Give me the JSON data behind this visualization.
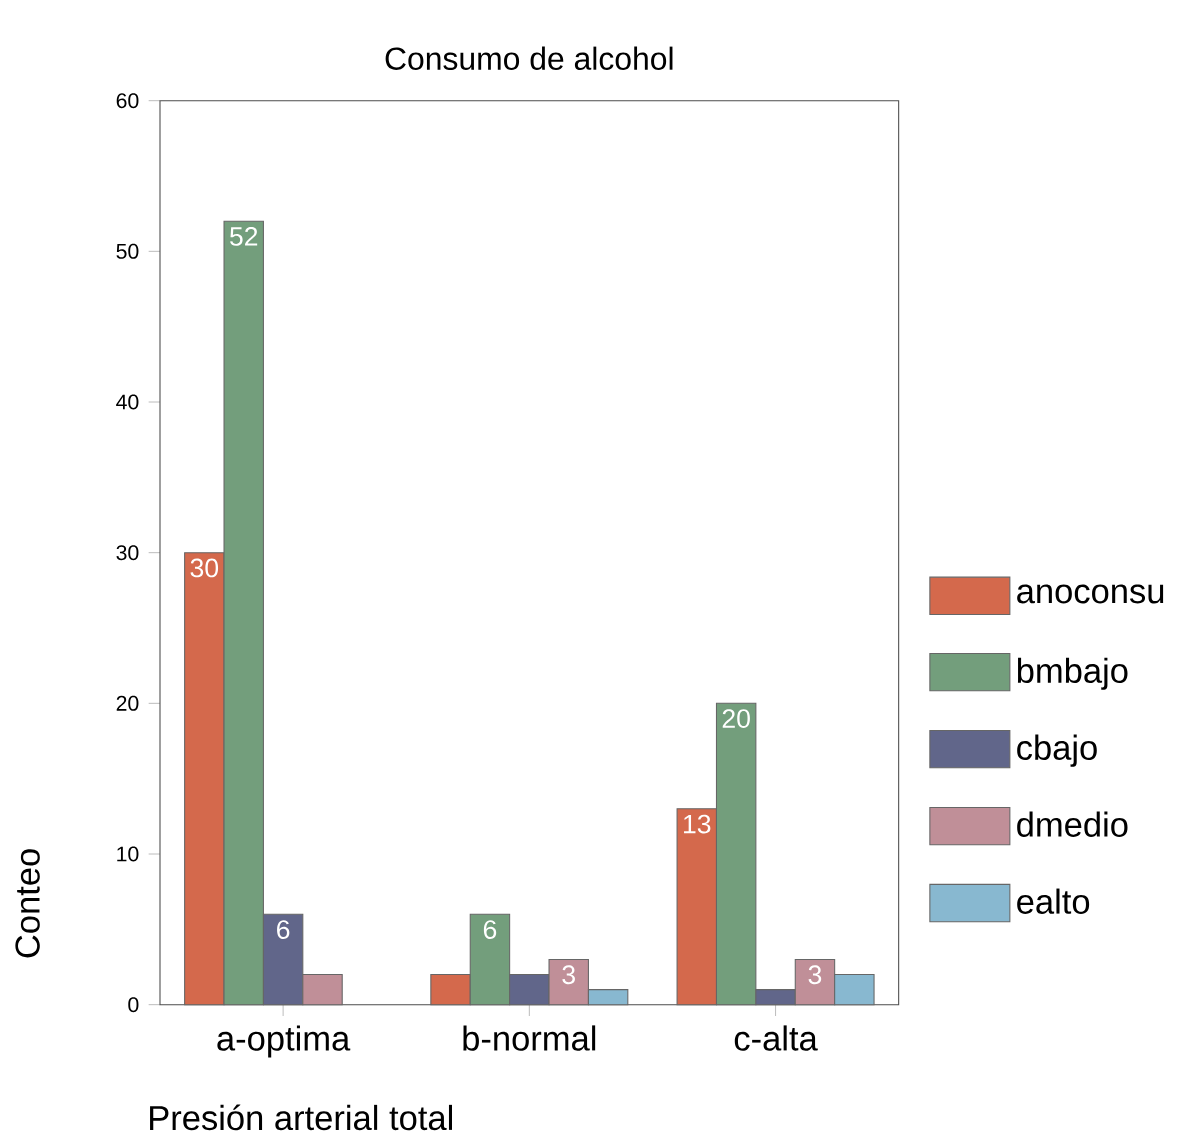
{
  "chart_data": {
    "type": "bar",
    "title": "Consumo de alcohol",
    "xlabel": "Presión arterial total",
    "ylabel": "Conteo",
    "categories": [
      "a-optima",
      "b-normal",
      "c-alta"
    ],
    "series": [
      {
        "name": "anoconsu",
        "color": "#d4694c",
        "values": [
          30,
          2,
          13
        ],
        "value_labels": [
          "30",
          null,
          "13"
        ]
      },
      {
        "name": "bmbajo",
        "color": "#739e7c",
        "values": [
          52,
          6,
          20
        ],
        "value_labels": [
          "52",
          "6",
          "20"
        ]
      },
      {
        "name": "cbajo",
        "color": "#61668a",
        "values": [
          6,
          2,
          1
        ],
        "value_labels": [
          "6",
          null,
          null
        ]
      },
      {
        "name": "dmedio",
        "color": "#c08f98",
        "values": [
          2,
          3,
          3
        ],
        "value_labels": [
          null,
          "3",
          "3"
        ]
      },
      {
        "name": "ealto",
        "color": "#88b8d0",
        "values": [
          null,
          1,
          2
        ],
        "value_labels": [
          null,
          null,
          null
        ]
      }
    ],
    "ylim": [
      0,
      60
    ],
    "yticks": [
      0,
      10,
      20,
      30,
      40,
      50,
      60
    ],
    "grid": false,
    "legend": "right"
  }
}
